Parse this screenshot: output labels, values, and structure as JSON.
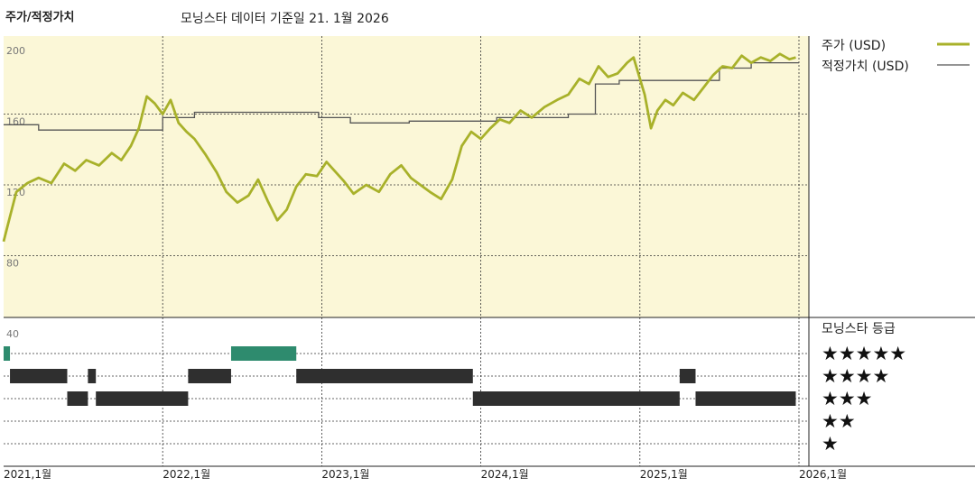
{
  "header": {
    "title": "주가/적정가치",
    "subtitle": "모닝스타 데이터 기준일 21. 1월 2026"
  },
  "legend": {
    "price_label": "주가 (USD)",
    "fair_value_label": "적정가치 (USD)",
    "rating_title": "모닝스타 등급"
  },
  "colors": {
    "price": "#a8b12a",
    "fair_value": "#555555",
    "plot_bg": "#fbf7d7",
    "rating_fill": "#2f2f2f",
    "rating_fill_top": "#2e8b6e"
  },
  "chart_data": {
    "type": "line",
    "y_ticks": [
      "200",
      "160",
      "120",
      "80",
      "40"
    ],
    "ylim": [
      40,
      200
    ],
    "x_ticks": [
      "2021,1월",
      "2022,1월",
      "2023,1월",
      "2024,1월",
      "2025,1월",
      "2026,1월"
    ],
    "x_tick_values": [
      2021.0,
      2022.0,
      2023.0,
      2024.0,
      2025.0,
      2026.0
    ],
    "xlim": [
      2021.0,
      2026.0
    ],
    "grid": true,
    "legend_position": "top-right",
    "series": [
      {
        "name": "주가 (USD)",
        "points": [
          [
            2021.0,
            88
          ],
          [
            2021.04,
            102
          ],
          [
            2021.08,
            116
          ],
          [
            2021.15,
            121
          ],
          [
            2021.22,
            124
          ],
          [
            2021.3,
            121
          ],
          [
            2021.38,
            132
          ],
          [
            2021.45,
            128
          ],
          [
            2021.52,
            134
          ],
          [
            2021.6,
            131
          ],
          [
            2021.68,
            138
          ],
          [
            2021.74,
            134
          ],
          [
            2021.8,
            142
          ],
          [
            2021.85,
            152
          ],
          [
            2021.9,
            170
          ],
          [
            2021.95,
            166
          ],
          [
            2022.0,
            160
          ],
          [
            2022.05,
            168
          ],
          [
            2022.1,
            155
          ],
          [
            2022.15,
            150
          ],
          [
            2022.2,
            146
          ],
          [
            2022.27,
            137
          ],
          [
            2022.34,
            127
          ],
          [
            2022.4,
            116
          ],
          [
            2022.47,
            110
          ],
          [
            2022.54,
            114
          ],
          [
            2022.6,
            123
          ],
          [
            2022.66,
            111
          ],
          [
            2022.72,
            100
          ],
          [
            2022.78,
            106
          ],
          [
            2022.84,
            119
          ],
          [
            2022.9,
            126
          ],
          [
            2022.97,
            125
          ],
          [
            2023.03,
            133
          ],
          [
            2023.08,
            128
          ],
          [
            2023.14,
            122
          ],
          [
            2023.2,
            115
          ],
          [
            2023.28,
            120
          ],
          [
            2023.36,
            116
          ],
          [
            2023.43,
            126
          ],
          [
            2023.5,
            131
          ],
          [
            2023.56,
            124
          ],
          [
            2023.62,
            120
          ],
          [
            2023.68,
            116
          ],
          [
            2023.75,
            112
          ],
          [
            2023.82,
            123
          ],
          [
            2023.88,
            142
          ],
          [
            2023.94,
            150
          ],
          [
            2024.0,
            146
          ],
          [
            2024.06,
            152
          ],
          [
            2024.12,
            157
          ],
          [
            2024.18,
            155
          ],
          [
            2024.25,
            162
          ],
          [
            2024.32,
            158
          ],
          [
            2024.4,
            164
          ],
          [
            2024.48,
            168
          ],
          [
            2024.55,
            171
          ],
          [
            2024.62,
            180
          ],
          [
            2024.68,
            177
          ],
          [
            2024.74,
            187
          ],
          [
            2024.8,
            181
          ],
          [
            2024.86,
            183
          ],
          [
            2024.92,
            189
          ],
          [
            2024.96,
            192
          ],
          [
            2025.0,
            180
          ],
          [
            2025.03,
            171
          ],
          [
            2025.07,
            152
          ],
          [
            2025.11,
            162
          ],
          [
            2025.16,
            168
          ],
          [
            2025.21,
            165
          ],
          [
            2025.27,
            172
          ],
          [
            2025.34,
            168
          ],
          [
            2025.4,
            175
          ],
          [
            2025.46,
            182
          ],
          [
            2025.52,
            187
          ],
          [
            2025.58,
            186
          ],
          [
            2025.64,
            193
          ],
          [
            2025.7,
            189
          ],
          [
            2025.76,
            192
          ],
          [
            2025.82,
            190
          ],
          [
            2025.88,
            194
          ],
          [
            2025.94,
            191
          ],
          [
            2025.98,
            192
          ]
        ]
      },
      {
        "name": "적정가치 (USD)",
        "points": [
          [
            2021.0,
            154
          ],
          [
            2021.22,
            154
          ],
          [
            2021.22,
            151
          ],
          [
            2022.0,
            151
          ],
          [
            2022.0,
            158
          ],
          [
            2022.2,
            158
          ],
          [
            2022.2,
            161
          ],
          [
            2022.98,
            161
          ],
          [
            2022.98,
            158
          ],
          [
            2023.18,
            158
          ],
          [
            2023.18,
            155
          ],
          [
            2023.55,
            155
          ],
          [
            2023.55,
            156
          ],
          [
            2024.1,
            156
          ],
          [
            2024.1,
            158
          ],
          [
            2024.55,
            158
          ],
          [
            2024.55,
            160
          ],
          [
            2024.72,
            160
          ],
          [
            2024.72,
            177
          ],
          [
            2024.87,
            177
          ],
          [
            2024.87,
            179
          ],
          [
            2025.5,
            179
          ],
          [
            2025.5,
            186
          ],
          [
            2025.7,
            186
          ],
          [
            2025.7,
            189
          ],
          [
            2026.0,
            189
          ]
        ]
      }
    ],
    "rating_levels": [
      "★★★★★",
      "★★★★",
      "★★★",
      "★★",
      "★"
    ],
    "ratings": [
      {
        "stars": 5,
        "start": 2021.0,
        "end": 2021.04
      },
      {
        "stars": 4,
        "start": 2021.04,
        "end": 2021.4
      },
      {
        "stars": 3,
        "start": 2021.4,
        "end": 2021.53
      },
      {
        "stars": 4,
        "start": 2021.53,
        "end": 2021.58
      },
      {
        "stars": 3,
        "start": 2021.58,
        "end": 2022.16
      },
      {
        "stars": 4,
        "start": 2022.16,
        "end": 2022.43
      },
      {
        "stars": 5,
        "start": 2022.43,
        "end": 2022.84
      },
      {
        "stars": 4,
        "start": 2022.84,
        "end": 2023.95
      },
      {
        "stars": 3,
        "start": 2023.95,
        "end": 2025.25
      },
      {
        "stars": 4,
        "start": 2025.25,
        "end": 2025.35
      },
      {
        "stars": 3,
        "start": 2025.35,
        "end": 2025.98
      }
    ]
  }
}
